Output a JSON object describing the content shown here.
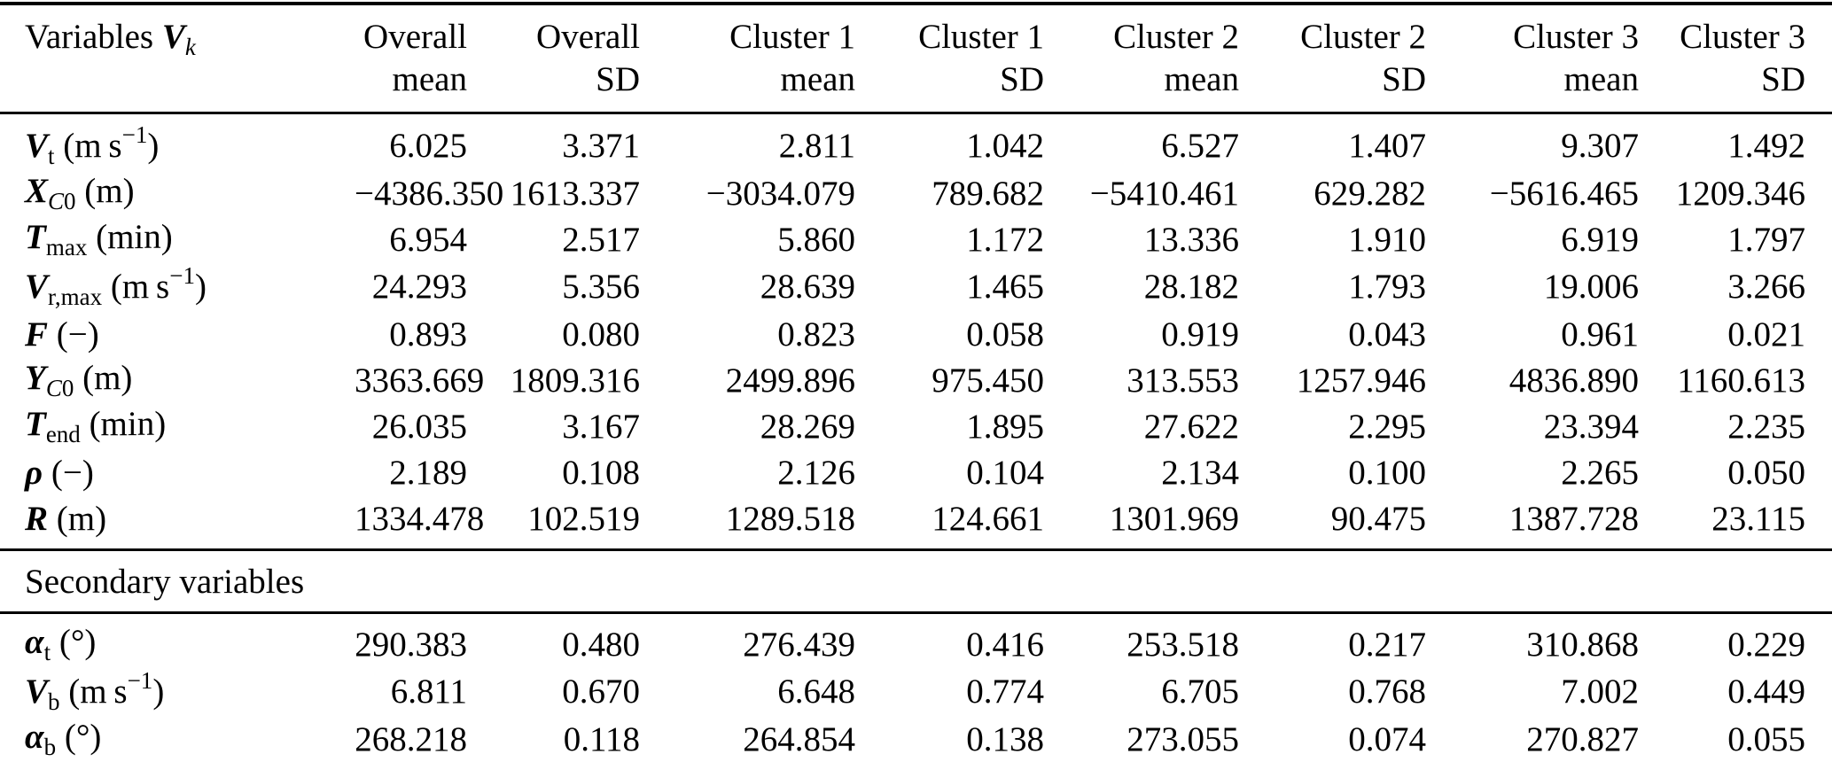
{
  "colors": {
    "background": "#ffffff",
    "text": "#000000",
    "rules": "#000000"
  },
  "table": {
    "header": {
      "label_segments": [
        {
          "text": "Variables ",
          "style": "plain"
        },
        {
          "text": "V",
          "style": "sym"
        },
        {
          "text": "k",
          "style": "subi"
        }
      ],
      "columns": [
        {
          "line1": "Overall",
          "line2": "mean"
        },
        {
          "line1": "Overall",
          "line2": "SD"
        },
        {
          "line1": "Cluster 1",
          "line2": "mean"
        },
        {
          "line1": "Cluster 1",
          "line2": "SD"
        },
        {
          "line1": "Cluster 2",
          "line2": "mean"
        },
        {
          "line1": "Cluster 2",
          "line2": "SD"
        },
        {
          "line1": "Cluster 3",
          "line2": "mean"
        },
        {
          "line1": "Cluster 3",
          "line2": "SD"
        }
      ]
    },
    "section_titles": {
      "secondary": "Secondary variables"
    },
    "sections": [
      {
        "name": "primary",
        "rows": [
          {
            "id": "vt",
            "label_segments": [
              {
                "text": "V",
                "style": "sym"
              },
              {
                "text": "t",
                "style": "sub"
              },
              {
                "text": " (m s",
                "style": "plain"
              },
              {
                "text": "−1",
                "style": "sup"
              },
              {
                "text": ")",
                "style": "plain"
              }
            ],
            "values": [
              "6.025",
              "3.371",
              "2.811",
              "1.042",
              "6.527",
              "1.407",
              "9.307",
              "1.492"
            ]
          },
          {
            "id": "xc0",
            "label_segments": [
              {
                "text": "X",
                "style": "sym"
              },
              {
                "text": "C",
                "style": "subi"
              },
              {
                "text": "0",
                "style": "sub"
              },
              {
                "text": " (m)",
                "style": "plain"
              }
            ],
            "values": [
              "−4386.350",
              "1613.337",
              "−3034.079",
              "789.682",
              "−5410.461",
              "629.282",
              "−5616.465",
              "1209.346"
            ]
          },
          {
            "id": "tmax",
            "label_segments": [
              {
                "text": "T",
                "style": "sym"
              },
              {
                "text": "max",
                "style": "sub"
              },
              {
                "text": " (min)",
                "style": "plain"
              }
            ],
            "values": [
              "6.954",
              "2.517",
              "5.860",
              "1.172",
              "13.336",
              "1.910",
              "6.919",
              "1.797"
            ]
          },
          {
            "id": "vrmax",
            "label_segments": [
              {
                "text": "V",
                "style": "sym"
              },
              {
                "text": "r,max",
                "style": "sub"
              },
              {
                "text": " (m s",
                "style": "plain"
              },
              {
                "text": "−1",
                "style": "sup"
              },
              {
                "text": ")",
                "style": "plain"
              }
            ],
            "values": [
              "24.293",
              "5.356",
              "28.639",
              "1.465",
              "28.182",
              "1.793",
              "19.006",
              "3.266"
            ]
          },
          {
            "id": "f",
            "label_segments": [
              {
                "text": "F",
                "style": "sym"
              },
              {
                "text": " (−)",
                "style": "plain"
              }
            ],
            "values": [
              "0.893",
              "0.080",
              "0.823",
              "0.058",
              "0.919",
              "0.043",
              "0.961",
              "0.021"
            ]
          },
          {
            "id": "yc0",
            "label_segments": [
              {
                "text": "Y",
                "style": "sym"
              },
              {
                "text": "C",
                "style": "subi"
              },
              {
                "text": "0",
                "style": "sub"
              },
              {
                "text": " (m)",
                "style": "plain"
              }
            ],
            "values": [
              "3363.669",
              "1809.316",
              "2499.896",
              "975.450",
              "313.553",
              "1257.946",
              "4836.890",
              "1160.613"
            ]
          },
          {
            "id": "tend",
            "label_segments": [
              {
                "text": "T",
                "style": "sym"
              },
              {
                "text": "end",
                "style": "sub"
              },
              {
                "text": " (min)",
                "style": "plain"
              }
            ],
            "values": [
              "26.035",
              "3.167",
              "28.269",
              "1.895",
              "27.622",
              "2.295",
              "23.394",
              "2.235"
            ]
          },
          {
            "id": "rho",
            "label_segments": [
              {
                "text": "ρ",
                "style": "sym"
              },
              {
                "text": " (−)",
                "style": "plain"
              }
            ],
            "values": [
              "2.189",
              "0.108",
              "2.126",
              "0.104",
              "2.134",
              "0.100",
              "2.265",
              "0.050"
            ]
          },
          {
            "id": "r",
            "label_segments": [
              {
                "text": "R",
                "style": "sym"
              },
              {
                "text": " (m)",
                "style": "plain"
              }
            ],
            "values": [
              "1334.478",
              "102.519",
              "1289.518",
              "124.661",
              "1301.969",
              "90.475",
              "1387.728",
              "23.115"
            ]
          }
        ]
      },
      {
        "name": "secondary",
        "rows": [
          {
            "id": "alpha-t",
            "label_segments": [
              {
                "text": "α",
                "style": "sym"
              },
              {
                "text": "t",
                "style": "sub"
              },
              {
                "text": " (°)",
                "style": "plain"
              }
            ],
            "values": [
              "290.383",
              "0.480",
              "276.439",
              "0.416",
              "253.518",
              "0.217",
              "310.868",
              "0.229"
            ]
          },
          {
            "id": "vb",
            "label_segments": [
              {
                "text": "V",
                "style": "sym"
              },
              {
                "text": "b",
                "style": "sub"
              },
              {
                "text": " (m s",
                "style": "plain"
              },
              {
                "text": "−1",
                "style": "sup"
              },
              {
                "text": ")",
                "style": "plain"
              }
            ],
            "values": [
              "6.811",
              "0.670",
              "6.648",
              "0.774",
              "6.705",
              "0.768",
              "7.002",
              "0.449"
            ]
          },
          {
            "id": "alpha-b",
            "label_segments": [
              {
                "text": "α",
                "style": "sym"
              },
              {
                "text": "b",
                "style": "sub"
              },
              {
                "text": " (°)",
                "style": "plain"
              }
            ],
            "values": [
              "268.218",
              "0.118",
              "264.854",
              "0.138",
              "273.055",
              "0.074",
              "270.827",
              "0.055"
            ]
          }
        ]
      }
    ]
  }
}
